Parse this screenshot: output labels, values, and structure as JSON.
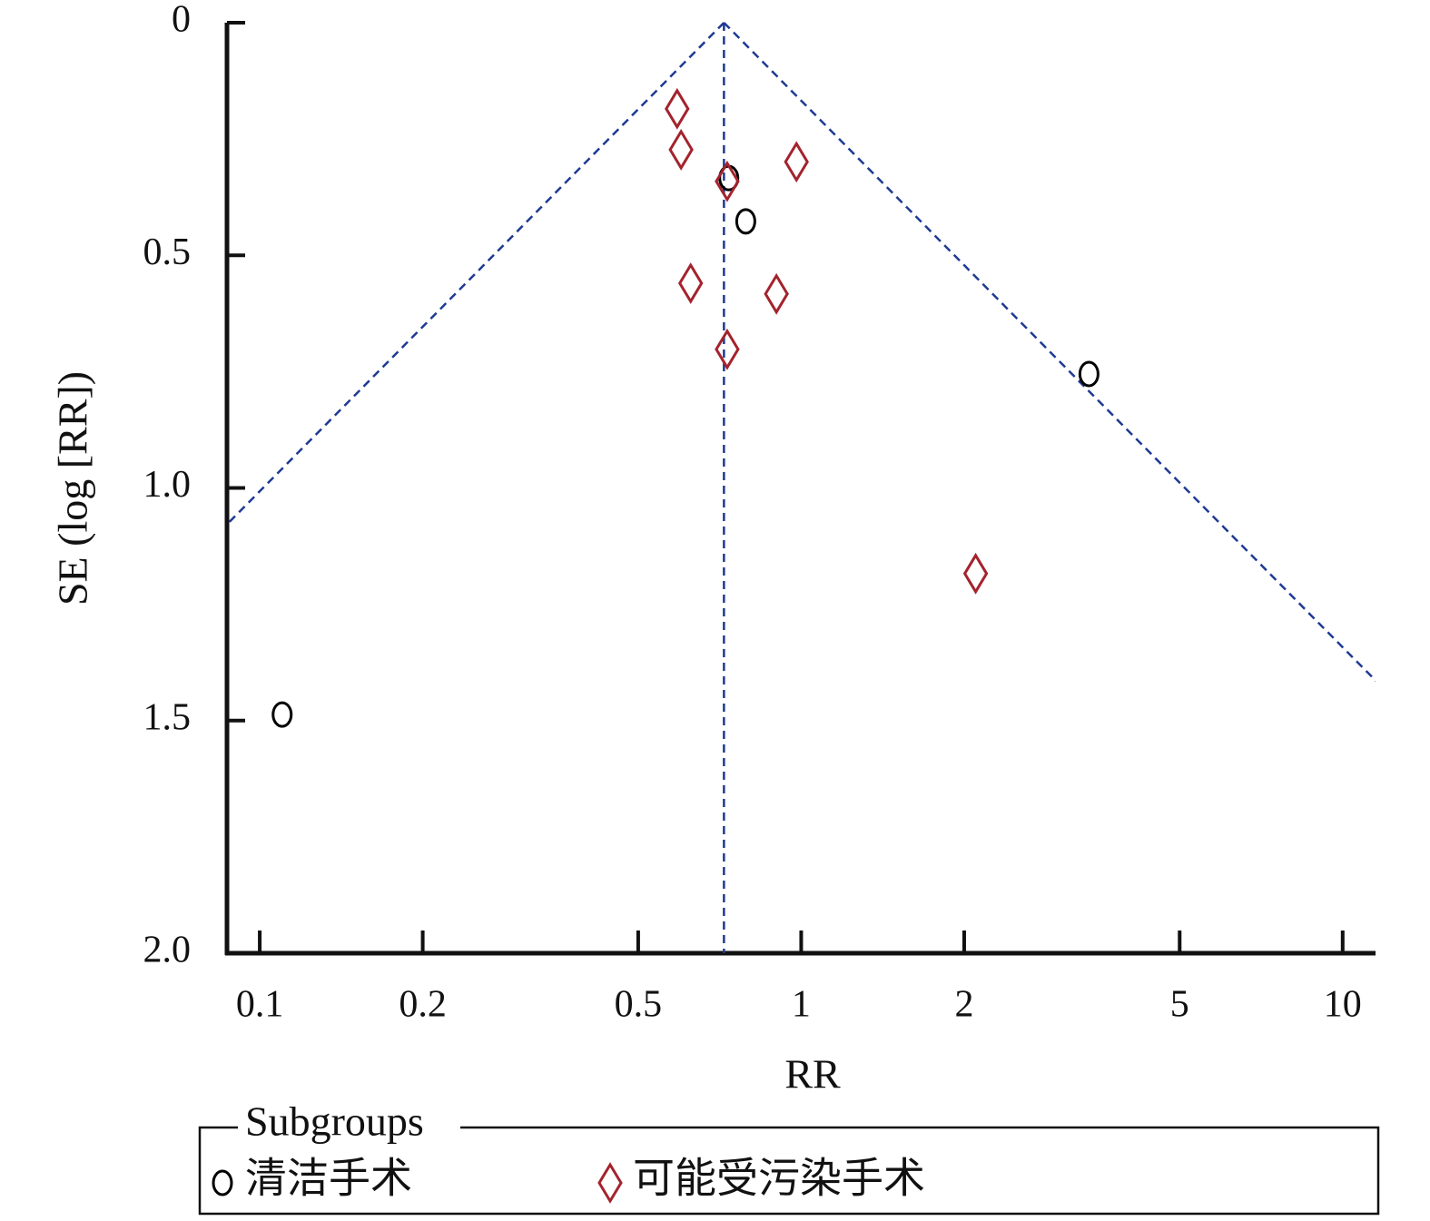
{
  "chart_data": {
    "type": "scatter",
    "xlabel": "RR",
    "ylabel": "SE (log [RR])",
    "xscale": "log",
    "yinverted": true,
    "pooled": 0.72,
    "xlim": [
      0.087,
      11.5
    ],
    "xticks": [
      0.1,
      0.2,
      0.5,
      1,
      2,
      5,
      10
    ],
    "ylim": [
      0,
      2
    ],
    "yticks": [
      0,
      0.5,
      {
        "value": 1,
        "label": "1.0"
      },
      1.5,
      {
        "value": 2,
        "label": "2.0"
      }
    ],
    "legend_title": "Subgroups",
    "funnel_color": "#1f3a93",
    "series": [
      {
        "name": "清洁手术",
        "color": "#000000",
        "marker": "circle",
        "x": [
          0.735,
          0.79,
          3.4,
          0.11
        ],
        "values": [
          0.334,
          0.427,
          0.755,
          1.487
        ]
      },
      {
        "name": "可能受污染手术",
        "color": "#a3232d",
        "marker": "diamond",
        "x": [
          0.59,
          0.6,
          0.73,
          0.98,
          0.625,
          0.9,
          0.73,
          2.1
        ],
        "values": [
          0.185,
          0.273,
          0.341,
          0.299,
          0.56,
          0.583,
          0.702,
          1.184
        ]
      }
    ]
  }
}
